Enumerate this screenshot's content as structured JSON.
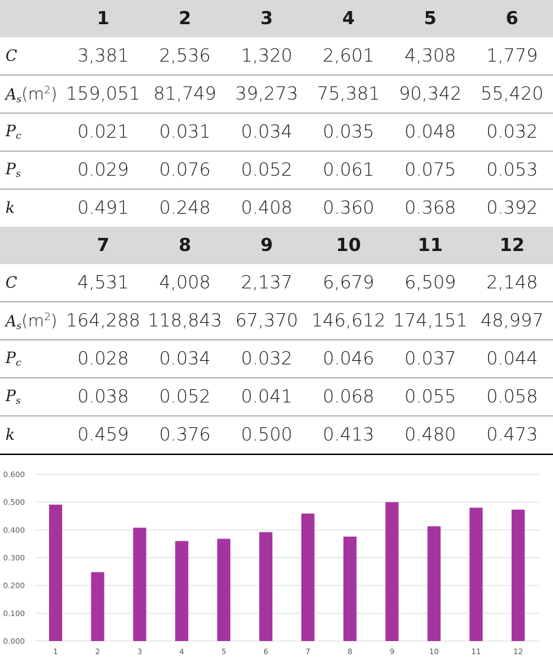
{
  "table": {
    "row_labels": {
      "C": {
        "base": "C"
      },
      "As": {
        "base": "A",
        "sub": "s",
        "unit": "(m",
        "unit_sup": "2",
        "unit_close": ")"
      },
      "Pc": {
        "base": "P",
        "sub": "c"
      },
      "Ps": {
        "base": "P",
        "sub": "s"
      },
      "k": {
        "base": "k"
      }
    },
    "block1": {
      "headers": [
        "1",
        "2",
        "3",
        "4",
        "5",
        "6"
      ],
      "C": [
        "3,381",
        "2,536",
        "1,320",
        "2,601",
        "4,308",
        "1,779"
      ],
      "As": [
        "159,051",
        "81,749",
        "39,273",
        "75,381",
        "90,342",
        "55,420"
      ],
      "Pc": [
        "0.021",
        "0.031",
        "0.034",
        "0.035",
        "0.048",
        "0.032"
      ],
      "Ps": [
        "0.029",
        "0.076",
        "0.052",
        "0.061",
        "0.075",
        "0.053"
      ],
      "k": [
        "0.491",
        "0.248",
        "0.408",
        "0.360",
        "0.368",
        "0.392"
      ]
    },
    "block2": {
      "headers": [
        "7",
        "8",
        "9",
        "10",
        "11",
        "12"
      ],
      "C": [
        "4,531",
        "4,008",
        "2,137",
        "6,679",
        "6,509",
        "2,148"
      ],
      "As": [
        "164,288",
        "118,843",
        "67,370",
        "146,612",
        "174,151",
        "48,997"
      ],
      "Pc": [
        "0.028",
        "0.034",
        "0.032",
        "0.046",
        "0.037",
        "0.044"
      ],
      "Ps": [
        "0.038",
        "0.052",
        "0.041",
        "0.068",
        "0.055",
        "0.058"
      ],
      "k": [
        "0.459",
        "0.376",
        "0.500",
        "0.413",
        "0.480",
        "0.473"
      ]
    }
  },
  "chart_data": {
    "type": "bar",
    "categories": [
      "1",
      "2",
      "3",
      "4",
      "5",
      "6",
      "7",
      "8",
      "9",
      "10",
      "11",
      "12"
    ],
    "values": [
      0.491,
      0.248,
      0.408,
      0.36,
      0.368,
      0.392,
      0.459,
      0.376,
      0.5,
      0.413,
      0.48,
      0.473
    ],
    "ylim": [
      0,
      0.6
    ],
    "yticks": [
      "0.000",
      "0.100",
      "0.200",
      "0.300",
      "0.400",
      "0.500",
      "0.600"
    ],
    "grid": true,
    "bar_color": "#a5349f",
    "title": "",
    "xlabel": "",
    "ylabel": ""
  }
}
